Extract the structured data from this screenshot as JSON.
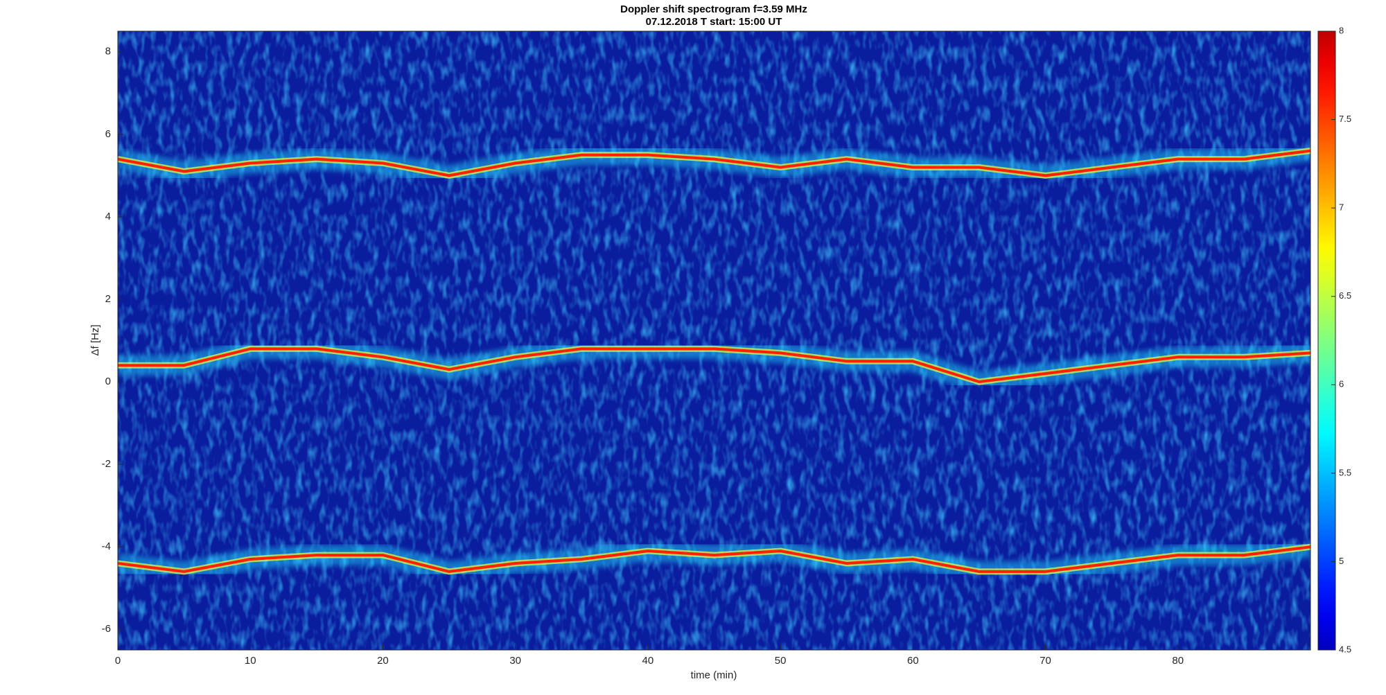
{
  "chart_data": {
    "type": "spectrogram",
    "title": "Doppler shift spectrogram f=3.59 MHz",
    "subtitle": "07.12.2018   T start: 15:00 UT",
    "x_label": "time (min)",
    "y_label": "Δf [Hz]",
    "xlim": [
      0,
      90
    ],
    "xticks": [
      0,
      10,
      20,
      30,
      40,
      50,
      60,
      70,
      80
    ],
    "ylim": [
      -6.5,
      8.5
    ],
    "yticks": [
      -6,
      -4,
      -2,
      0,
      2,
      4,
      6,
      8
    ],
    "x": [
      0,
      5,
      10,
      15,
      20,
      25,
      30,
      35,
      40,
      45,
      50,
      55,
      60,
      65,
      70,
      75,
      80,
      85,
      90
    ],
    "series": [
      {
        "color": "#ff2000",
        "values": [
          5.4,
          5.1,
          5.3,
          5.4,
          5.3,
          5.0,
          5.3,
          5.5,
          5.5,
          5.4,
          5.2,
          5.4,
          5.2,
          5.2,
          5.0,
          5.2,
          5.4,
          5.4,
          5.6
        ]
      },
      {
        "color": "#ff2000",
        "values": [
          0.4,
          0.4,
          0.8,
          0.8,
          0.6,
          0.3,
          0.6,
          0.8,
          0.8,
          0.8,
          0.7,
          0.5,
          0.5,
          0.0,
          0.2,
          0.4,
          0.6,
          0.6,
          0.7
        ]
      },
      {
        "color": "#ff2000",
        "values": [
          -4.4,
          -4.6,
          -4.3,
          -4.2,
          -4.2,
          -4.6,
          -4.4,
          -4.3,
          -4.1,
          -4.2,
          -4.1,
          -4.4,
          -4.3,
          -4.6,
          -4.6,
          -4.4,
          -4.2,
          -4.2,
          -4.0
        ]
      }
    ],
    "colorbar": {
      "colormap": "jet",
      "lim": [
        4.5,
        8
      ],
      "ticks": [
        4.5,
        5,
        5.5,
        6,
        6.5,
        7,
        7.5,
        8
      ]
    }
  }
}
